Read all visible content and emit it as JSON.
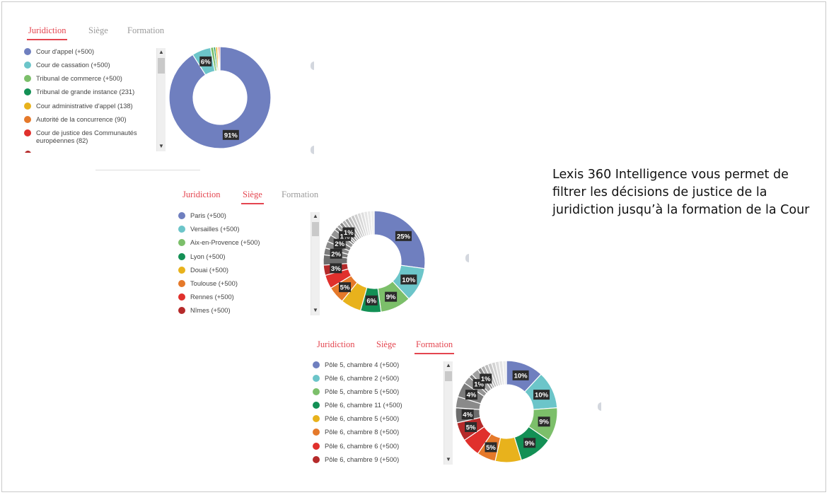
{
  "description": "Lexis 360 Intelligence vous permet de filtrer les décisions de justice de la juridiction jusqu’à la formation de la Cour",
  "panels": [
    {
      "tabs": [
        {
          "label": "Juridiction",
          "state": "active"
        },
        {
          "label": "Siège",
          "state": "inactive"
        },
        {
          "label": "Formation",
          "state": "inactive"
        }
      ],
      "legend": [
        {
          "label": "Cour d'appel (+500)",
          "color": "#6f7fbf"
        },
        {
          "label": "Cour de cassation (+500)",
          "color": "#6cc5c9"
        },
        {
          "label": "Tribunal de commerce (+500)",
          "color": "#7cbf6a"
        },
        {
          "label": "Tribunal de grande instance (231)",
          "color": "#139055"
        },
        {
          "label": "Cour administrative d'appel (138)",
          "color": "#e8b21c"
        },
        {
          "label": "Autorité de la concurrence (90)",
          "color": "#e5792a"
        },
        {
          "label": "Cour de justice des Communautés européennes (82)",
          "color": "#e0302c"
        }
      ],
      "chart_data": {
        "type": "pie",
        "slices": [
          {
            "value": 91,
            "label": "91%",
            "color": "#6f7fbf"
          },
          {
            "value": 6,
            "label": "6%",
            "color": "#6cc5c9"
          },
          {
            "value": 1,
            "label": "",
            "color": "#7cbf6a"
          },
          {
            "value": 0.6,
            "label": "",
            "color": "#139055"
          },
          {
            "value": 0.6,
            "label": "",
            "color": "#e8b21c"
          },
          {
            "value": 0.4,
            "label": "",
            "color": "#e5792a"
          },
          {
            "value": 0.4,
            "label": "",
            "color": "#e0302c"
          }
        ]
      }
    },
    {
      "tabs": [
        {
          "label": "Juridiction",
          "state": "inactive-red"
        },
        {
          "label": "Siège",
          "state": "active"
        },
        {
          "label": "Formation",
          "state": "inactive"
        }
      ],
      "legend": [
        {
          "label": "Paris (+500)",
          "color": "#6f7fbf"
        },
        {
          "label": "Versailles (+500)",
          "color": "#6cc5c9"
        },
        {
          "label": "Aix-en-Provence (+500)",
          "color": "#7cbf6a"
        },
        {
          "label": "Lyon (+500)",
          "color": "#139055"
        },
        {
          "label": "Douai (+500)",
          "color": "#e8b21c"
        },
        {
          "label": "Toulouse (+500)",
          "color": "#e5792a"
        },
        {
          "label": "Rennes (+500)",
          "color": "#e0302c"
        },
        {
          "label": "Nîmes (+500)",
          "color": "#b52a2a"
        }
      ],
      "chart_data": {
        "type": "pie",
        "slices": [
          {
            "value": 25,
            "label": "25%",
            "color": "#6f7fbf"
          },
          {
            "value": 10,
            "label": "10%",
            "color": "#6cc5c9"
          },
          {
            "value": 9,
            "label": "9%",
            "color": "#7cbf6a"
          },
          {
            "value": 6,
            "label": "6%",
            "color": "#139055"
          },
          {
            "value": 6,
            "label": "",
            "color": "#e8b21c"
          },
          {
            "value": 5,
            "label": "5%",
            "color": "#e5792a"
          },
          {
            "value": 4,
            "label": "",
            "color": "#e0302c"
          },
          {
            "value": 3,
            "label": "3%",
            "color": "#b52a2a"
          },
          {
            "value": 3,
            "label": "",
            "color": "#6d6d6d"
          },
          {
            "value": 2,
            "label": "2%",
            "color": "#7b7b7b"
          },
          {
            "value": 2,
            "label": "",
            "color": "#8a8a8a"
          },
          {
            "value": 2,
            "label": "2%",
            "color": "#7b7b7b"
          },
          {
            "value": 2,
            "label": "",
            "color": "#959595"
          },
          {
            "value": 1,
            "label": "1%",
            "color": "#7b7b7b"
          },
          {
            "value": 1,
            "label": "",
            "color": "#a0a0a0"
          },
          {
            "value": 1,
            "label": "1%",
            "color": "#8a8a8a"
          },
          {
            "value": 1,
            "label": "",
            "color": "#b0b0b0"
          },
          {
            "value": 1,
            "label": "",
            "color": "#a8a8a8"
          },
          {
            "value": 1,
            "label": "",
            "color": "#bdbdbd"
          },
          {
            "value": 1,
            "label": "",
            "color": "#c6c6c6"
          },
          {
            "value": 1,
            "label": "",
            "color": "#cfcfcf"
          },
          {
            "value": 1,
            "label": "",
            "color": "#d8d8d8"
          },
          {
            "value": 1,
            "label": "",
            "color": "#dfdfdf"
          },
          {
            "value": 1,
            "label": "",
            "color": "#e5e5e5"
          },
          {
            "value": 1,
            "label": "",
            "color": "#e9e9e9"
          },
          {
            "value": 1,
            "label": "",
            "color": "#ededed"
          }
        ]
      }
    },
    {
      "tabs": [
        {
          "label": "Juridiction",
          "state": "inactive-red"
        },
        {
          "label": "Siège",
          "state": "inactive-red"
        },
        {
          "label": "Formation",
          "state": "active"
        }
      ],
      "legend": [
        {
          "label": "Pôle 5, chambre 4 (+500)",
          "color": "#6f7fbf"
        },
        {
          "label": "Pôle 6, chambre 2 (+500)",
          "color": "#6cc5c9"
        },
        {
          "label": "Pôle 5, chambre 5 (+500)",
          "color": "#7cbf6a"
        },
        {
          "label": "Pôle 6, chambre 11 (+500)",
          "color": "#139055"
        },
        {
          "label": "Pôle 6, chambre 5 (+500)",
          "color": "#e8b21c"
        },
        {
          "label": "Pôle 6, chambre 8 (+500)",
          "color": "#e5792a"
        },
        {
          "label": "Pôle 6, chambre 6 (+500)",
          "color": "#e0302c"
        },
        {
          "label": "Pôle 6, chambre 9 (+500)",
          "color": "#b52a2a"
        }
      ],
      "chart_data": {
        "type": "pie",
        "slices": [
          {
            "value": 10,
            "label": "10%",
            "color": "#6f7fbf"
          },
          {
            "value": 10,
            "label": "10%",
            "color": "#6cc5c9"
          },
          {
            "value": 9,
            "label": "9%",
            "color": "#7cbf6a"
          },
          {
            "value": 9,
            "label": "9%",
            "color": "#139055"
          },
          {
            "value": 7,
            "label": "",
            "color": "#e8b21c"
          },
          {
            "value": 5,
            "label": "5%",
            "color": "#e5792a"
          },
          {
            "value": 5,
            "label": "",
            "color": "#e0302c"
          },
          {
            "value": 5,
            "label": "5%",
            "color": "#b52a2a"
          },
          {
            "value": 4,
            "label": "4%",
            "color": "#6d6d6d"
          },
          {
            "value": 3,
            "label": "",
            "color": "#8a8a8a"
          },
          {
            "value": 4,
            "label": "4%",
            "color": "#7b7b7b"
          },
          {
            "value": 2,
            "label": "",
            "color": "#959595"
          },
          {
            "value": 1,
            "label": "1%",
            "color": "#7b7b7b"
          },
          {
            "value": 2,
            "label": "",
            "color": "#a0a0a0"
          },
          {
            "value": 1,
            "label": "1%",
            "color": "#8a8a8a"
          },
          {
            "value": 1,
            "label": "",
            "color": "#b0b0b0"
          },
          {
            "value": 1,
            "label": "",
            "color": "#bdbdbd"
          },
          {
            "value": 1,
            "label": "",
            "color": "#c8c8c8"
          },
          {
            "value": 1,
            "label": "",
            "color": "#d3d3d3"
          },
          {
            "value": 1,
            "label": "",
            "color": "#dddddd"
          },
          {
            "value": 1,
            "label": "",
            "color": "#e5e5e5"
          },
          {
            "value": 1,
            "label": "",
            "color": "#ececec"
          }
        ]
      }
    }
  ]
}
